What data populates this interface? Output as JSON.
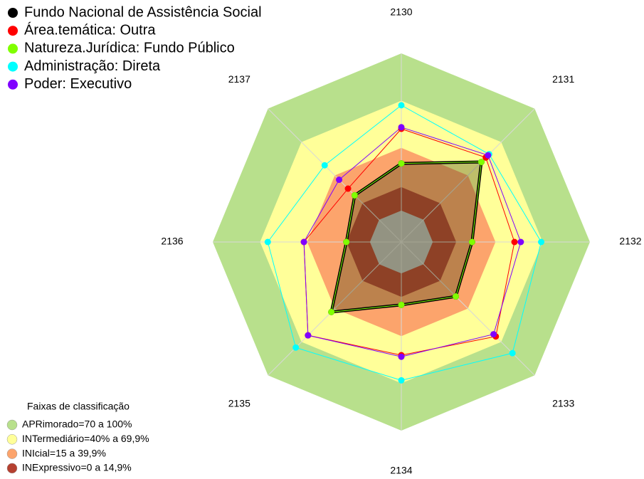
{
  "chart_data": {
    "type": "radar",
    "categories": [
      "2130",
      "2131",
      "2132",
      "2133",
      "2134",
      "2135",
      "2136",
      "2137"
    ],
    "ylim": [
      -20,
      100
    ],
    "series": [
      {
        "name": "Fundo Nacional de Assistência Social",
        "color": "#000000",
        "fill": "rgba(70,70,20,0.35)",
        "values": [
          30,
          52,
          25,
          29,
          20,
          43,
          15,
          22
        ]
      },
      {
        "name": "Área.temática: Outra",
        "color": "#ff0000",
        "values": [
          52,
          56,
          52,
          65,
          52,
          64,
          42,
          28
        ]
      },
      {
        "name": "Natureza.Jurídica: Fundo Público",
        "color": "#80ff00",
        "values": [
          30,
          52,
          25,
          29,
          20,
          43,
          15,
          22
        ]
      },
      {
        "name": "Administração: Direta",
        "color": "#00ffff",
        "values": [
          67,
          59,
          69,
          80,
          68,
          75,
          65,
          49
        ]
      },
      {
        "name": "Poder: Executivo",
        "color": "#8000ff",
        "values": [
          53,
          58,
          56,
          63,
          53,
          64,
          42,
          36
        ]
      }
    ],
    "band_legend_title": "Faixas de classificação",
    "bands": [
      {
        "label": "APRimorado=70 a 100%",
        "color": "#b8e08c",
        "min": 70,
        "max": 100
      },
      {
        "label": "INTermediário=40% a 69,9%",
        "color": "#ffff99",
        "min": 40,
        "max": 69.9
      },
      {
        "label": "INIcial=15 a 39,9%",
        "color": "#fca46c",
        "min": 15,
        "max": 39.9
      },
      {
        "label": "INExpressivo=0 a 14,9%",
        "color": "#b54030",
        "min": 0,
        "max": 14.9
      }
    ]
  }
}
